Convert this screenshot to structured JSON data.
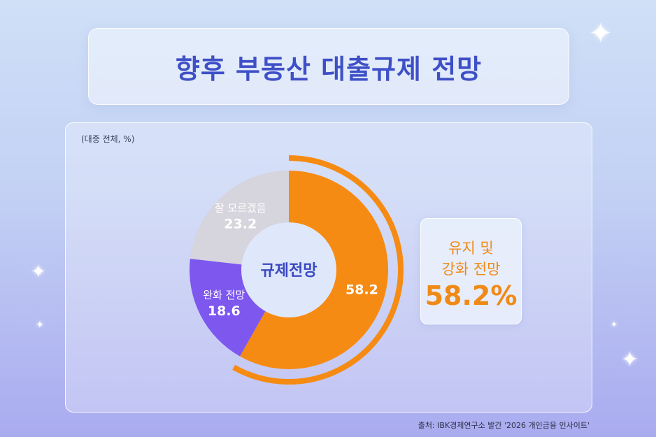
{
  "title": "향후 부동산 대출규제 전망",
  "unit_label": "(대중 전체, %)",
  "center_label": "규제전망",
  "callout": {
    "line1": "유지 및",
    "line2": "강화 전망",
    "value": "58.2%"
  },
  "source": "출처: IBK경제연구소 발간 '2026 개인금융 인사이트'",
  "chart_data": {
    "type": "pie",
    "categories": [
      "유지 및 강화 전망",
      "완화 전망",
      "잘 모르겠음"
    ],
    "values": [
      58.2,
      18.6,
      23.2
    ],
    "slice_labels": [
      "",
      "완화 전망",
      "잘 모르겠음"
    ],
    "value_labels": [
      "58.2",
      "18.6",
      "23.2"
    ],
    "colors": [
      "#f68b13",
      "#7d57ee",
      "#d6d4dc"
    ],
    "highlight_slice": 0,
    "donut": true
  }
}
